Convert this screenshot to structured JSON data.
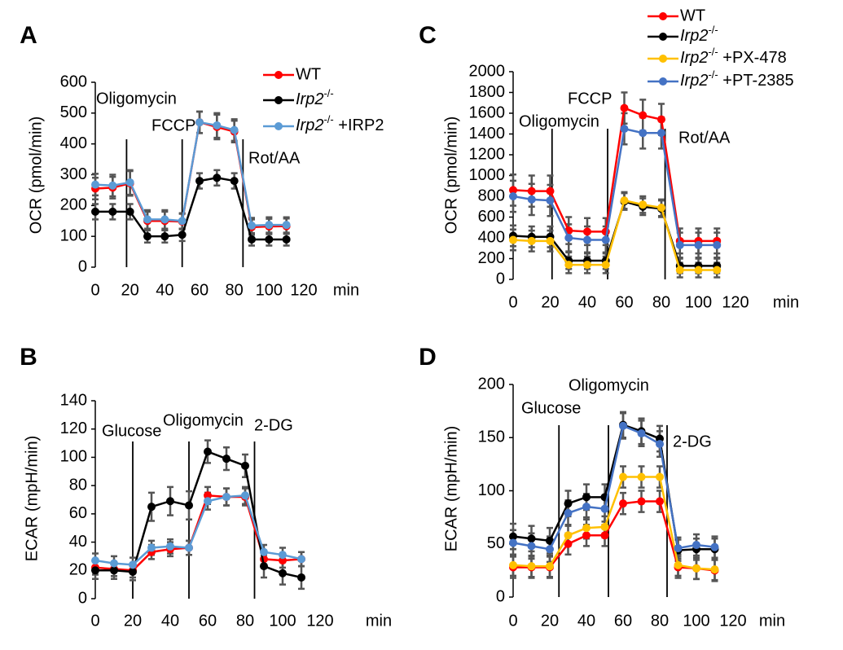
{
  "chart_data": [
    {
      "type": "line",
      "panel": "A",
      "y_label": "OCR (pmol/min)",
      "x_label": "min",
      "x": [
        0,
        10,
        20,
        30,
        40,
        50,
        60,
        70,
        80,
        90,
        100,
        110
      ],
      "xlim": [
        0,
        120
      ],
      "xticks": [
        0,
        20,
        40,
        60,
        80,
        100,
        120
      ],
      "ylim": [
        0,
        600
      ],
      "yticks": [
        0,
        100,
        200,
        300,
        400,
        500,
        600
      ],
      "annotations": [
        {
          "text": "Oligomycin",
          "x": 18
        },
        {
          "text": "FCCP",
          "x": 50
        },
        {
          "text": "Rot/AA",
          "x": 85
        }
      ],
      "series": [
        {
          "name": "WT",
          "color": "#ff0000",
          "values": [
            255,
            258,
            272,
            150,
            150,
            148,
            470,
            455,
            440,
            130,
            132,
            133
          ],
          "errors": [
            35,
            35,
            40,
            30,
            30,
            25,
            35,
            40,
            35,
            25,
            25,
            25
          ]
        },
        {
          "name": "Irp2-/-",
          "color": "#000000",
          "values": [
            180,
            180,
            180,
            100,
            100,
            105,
            280,
            290,
            280,
            90,
            90,
            90
          ],
          "errors": [
            25,
            25,
            25,
            20,
            20,
            20,
            25,
            25,
            25,
            20,
            20,
            20
          ]
        },
        {
          "name": "Irp2-/- +IRP2",
          "color": "#5b9bd5",
          "values": [
            268,
            265,
            275,
            155,
            155,
            150,
            470,
            460,
            445,
            135,
            137,
            137
          ],
          "errors": [
            35,
            35,
            40,
            30,
            30,
            25,
            35,
            40,
            35,
            25,
            25,
            25
          ]
        }
      ]
    },
    {
      "type": "line",
      "panel": "B",
      "y_label": "ECAR (mpH/min)",
      "x_label": "min",
      "x": [
        0,
        10,
        20,
        30,
        40,
        50,
        60,
        70,
        80,
        90,
        100,
        110
      ],
      "xlim": [
        0,
        120
      ],
      "xticks": [
        0,
        20,
        40,
        60,
        80,
        100,
        120
      ],
      "ylim": [
        0,
        140
      ],
      "yticks": [
        0,
        20,
        40,
        60,
        80,
        100,
        120,
        140
      ],
      "annotations": [
        {
          "text": "Glucose",
          "x": 20
        },
        {
          "text": "Oligomycin",
          "x": 50
        },
        {
          "text": "2-DG",
          "x": 85
        }
      ],
      "series": [
        {
          "name": "WT",
          "color": "#ff0000",
          "values": [
            22,
            21,
            20,
            33,
            35,
            36,
            73,
            72,
            72,
            28,
            27,
            28
          ],
          "errors": [
            5,
            5,
            5,
            5,
            5,
            5,
            6,
            6,
            6,
            5,
            5,
            5
          ]
        },
        {
          "name": "Irp2-/-",
          "color": "#000000",
          "values": [
            20,
            20,
            19,
            65,
            69,
            66,
            104,
            99,
            94,
            23,
            18,
            15
          ],
          "errors": [
            6,
            6,
            6,
            10,
            10,
            10,
            8,
            8,
            8,
            8,
            8,
            8
          ]
        },
        {
          "name": "Irp2-/- +IRP2",
          "color": "#5b9bd5",
          "values": [
            27,
            25,
            24,
            36,
            37,
            36,
            69,
            72,
            73,
            33,
            31,
            28
          ],
          "errors": [
            5,
            5,
            5,
            5,
            5,
            5,
            6,
            6,
            6,
            5,
            5,
            5
          ]
        }
      ]
    },
    {
      "type": "line",
      "panel": "C",
      "y_label": "OCR (pmol/min)",
      "x_label": "min",
      "x": [
        0,
        10,
        20,
        30,
        40,
        50,
        60,
        70,
        80,
        90,
        100,
        110
      ],
      "xlim": [
        0,
        120
      ],
      "xticks": [
        0,
        20,
        40,
        60,
        80,
        100,
        120
      ],
      "ylim": [
        0,
        2000
      ],
      "yticks": [
        0,
        200,
        400,
        600,
        800,
        1000,
        1200,
        1400,
        1600,
        1800,
        2000
      ],
      "annotations": [
        {
          "text": "Oligomycin",
          "x": 21
        },
        {
          "text": "FCCP",
          "x": 51
        },
        {
          "text": "Rot/AA",
          "x": 82
        }
      ],
      "series": [
        {
          "name": "WT",
          "color": "#ff0000",
          "values": [
            860,
            850,
            850,
            470,
            460,
            460,
            1650,
            1580,
            1540,
            370,
            370,
            370
          ],
          "errors": [
            150,
            150,
            150,
            130,
            130,
            130,
            150,
            150,
            150,
            120,
            120,
            120
          ]
        },
        {
          "name": "Irp2-/-",
          "color": "#000000",
          "values": [
            420,
            410,
            410,
            180,
            180,
            180,
            750,
            700,
            680,
            130,
            130,
            130
          ],
          "errors": [
            100,
            100,
            100,
            80,
            80,
            80,
            80,
            80,
            80,
            70,
            70,
            70
          ]
        },
        {
          "name": "Irp2-/- +PX-478",
          "color": "#ffc000",
          "values": [
            380,
            370,
            370,
            140,
            140,
            140,
            760,
            720,
            690,
            90,
            90,
            90
          ],
          "errors": [
            100,
            100,
            100,
            80,
            80,
            80,
            80,
            80,
            80,
            70,
            70,
            70
          ]
        },
        {
          "name": "Irp2-/- +PT-2385",
          "color": "#4472c4",
          "values": [
            800,
            770,
            760,
            400,
            380,
            380,
            1450,
            1410,
            1410,
            330,
            330,
            330
          ],
          "errors": [
            150,
            150,
            150,
            130,
            130,
            130,
            150,
            150,
            150,
            120,
            120,
            120
          ]
        }
      ]
    },
    {
      "type": "line",
      "panel": "D",
      "y_label": "ECAR (mpH/min)",
      "x_label": "min",
      "x": [
        0,
        10,
        20,
        30,
        40,
        50,
        60,
        70,
        80,
        90,
        100,
        110
      ],
      "xlim": [
        0,
        120
      ],
      "xticks": [
        0,
        20,
        40,
        60,
        80,
        100,
        120
      ],
      "ylim": [
        0,
        200
      ],
      "yticks": [
        0,
        50,
        100,
        150,
        200
      ],
      "annotations": [
        {
          "text": "Glucose",
          "x": 25
        },
        {
          "text": "Oligomycin",
          "x": 52
        },
        {
          "text": "2-DG",
          "x": 84
        }
      ],
      "series": [
        {
          "name": "WT",
          "color": "#ff0000",
          "values": [
            28,
            28,
            28,
            50,
            58,
            58,
            88,
            90,
            90,
            28,
            27,
            25
          ],
          "errors": [
            10,
            10,
            10,
            10,
            10,
            10,
            10,
            10,
            10,
            10,
            10,
            10
          ]
        },
        {
          "name": "Irp2-/-",
          "color": "#000000",
          "values": [
            57,
            55,
            53,
            88,
            94,
            94,
            162,
            156,
            149,
            44,
            45,
            45
          ],
          "errors": [
            12,
            12,
            12,
            12,
            12,
            12,
            12,
            12,
            12,
            10,
            10,
            10
          ]
        },
        {
          "name": "Irp2-/- +PX-478",
          "color": "#ffc000",
          "values": [
            30,
            29,
            29,
            58,
            65,
            66,
            113,
            113,
            113,
            30,
            27,
            26
          ],
          "errors": [
            10,
            10,
            10,
            10,
            10,
            10,
            10,
            10,
            10,
            10,
            10,
            10
          ]
        },
        {
          "name": "Irp2-/- +PT-2385",
          "color": "#4472c4",
          "values": [
            51,
            48,
            45,
            79,
            85,
            83,
            161,
            154,
            144,
            46,
            49,
            47
          ],
          "errors": [
            12,
            12,
            12,
            12,
            12,
            12,
            12,
            12,
            12,
            10,
            10,
            10
          ]
        }
      ]
    }
  ]
}
